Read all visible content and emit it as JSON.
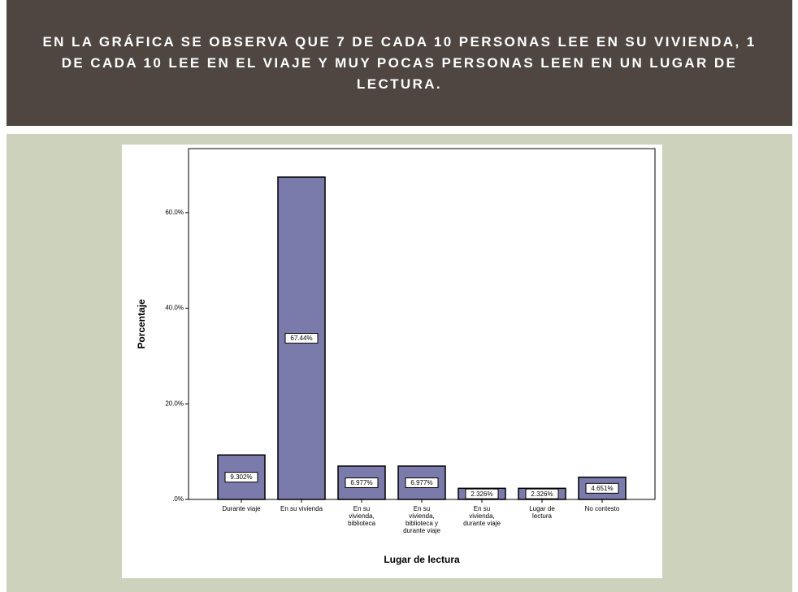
{
  "header": {
    "title": "EN LA GRÁFICA SE OBSERVA QUE  7 DE CADA 10 PERSONAS LEE EN SU VIVIENDA, 1 DE CADA 10 LEE EN EL VIAJE Y MUY POCAS PERSONAS LEEN EN UN LUGAR DE LECTURA."
  },
  "chart_data": {
    "type": "bar",
    "x_label": "Lugar de lectura",
    "y_label": "Porcentaje",
    "categories": [
      "Durante viaje",
      "En su vivienda",
      "En su vivienda, biblioteca",
      "En su vivienda, biblioteca y durante viaje",
      "En su vivienda, durante viaje",
      "Lugar de lectura",
      "No contesto"
    ],
    "values": [
      9.302,
      67.44,
      6.977,
      6.977,
      2.326,
      2.326,
      4.651
    ],
    "value_labels": [
      "9.302%",
      "67.44%",
      "6.977%",
      "6.977%",
      "2.326%",
      "2.326%",
      "4.651%"
    ],
    "color": "#7b7bab",
    "ylim": [
      0,
      73.4
    ],
    "yticks": [
      {
        "value": 0,
        "label": ".0%"
      },
      {
        "value": 20,
        "label": "20.0%"
      },
      {
        "value": 40,
        "label": "40.0%"
      },
      {
        "value": 60,
        "label": "60.0%"
      }
    ]
  }
}
